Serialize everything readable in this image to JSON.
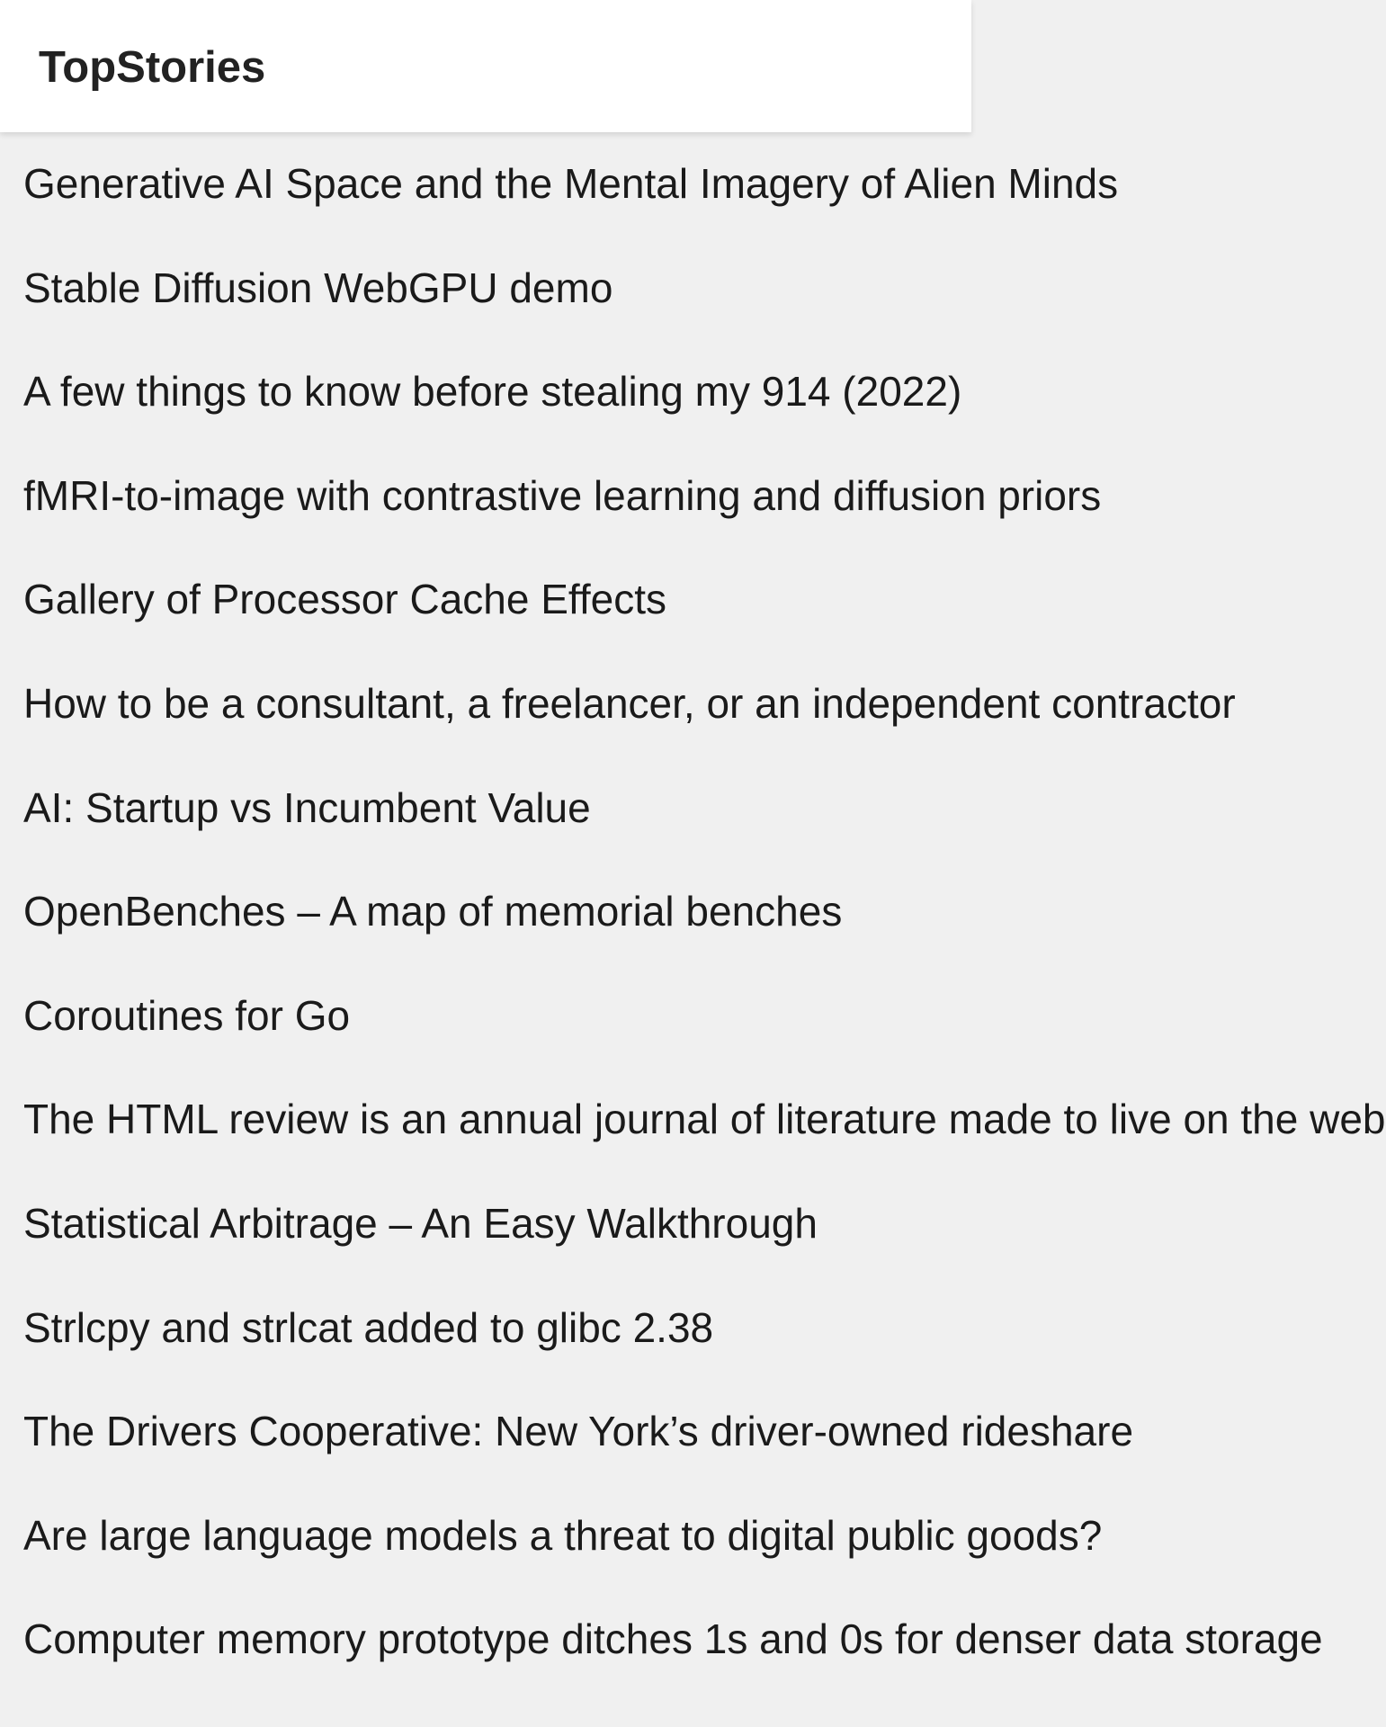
{
  "app_bar": {
    "title": "TopStories"
  },
  "stories": [
    {
      "title": "Generative AI Space and the Mental Imagery of Alien Minds"
    },
    {
      "title": "Stable Diffusion WebGPU demo"
    },
    {
      "title": "A few things to know before stealing my 914 (2022)"
    },
    {
      "title": "fMRI-to-image with contrastive learning and diffusion priors"
    },
    {
      "title": "Gallery of Processor Cache Effects"
    },
    {
      "title": "How to be a consultant, a freelancer, or an independent contractor"
    },
    {
      "title": "AI: Startup vs Incumbent Value"
    },
    {
      "title": "OpenBenches – A map of memorial benches"
    },
    {
      "title": "Coroutines for Go"
    },
    {
      "title": "The HTML review is an annual journal of literature made to live on the web"
    },
    {
      "title": "Statistical Arbitrage – An Easy Walkthrough"
    },
    {
      "title": "Strlcpy and strlcat added to glibc 2.38"
    },
    {
      "title": "The Drivers Cooperative: New York’s driver-owned rideshare"
    },
    {
      "title": "Are large language models a threat to digital public goods?"
    },
    {
      "title": "Computer memory prototype ditches 1s and 0s for denser data storage"
    }
  ]
}
